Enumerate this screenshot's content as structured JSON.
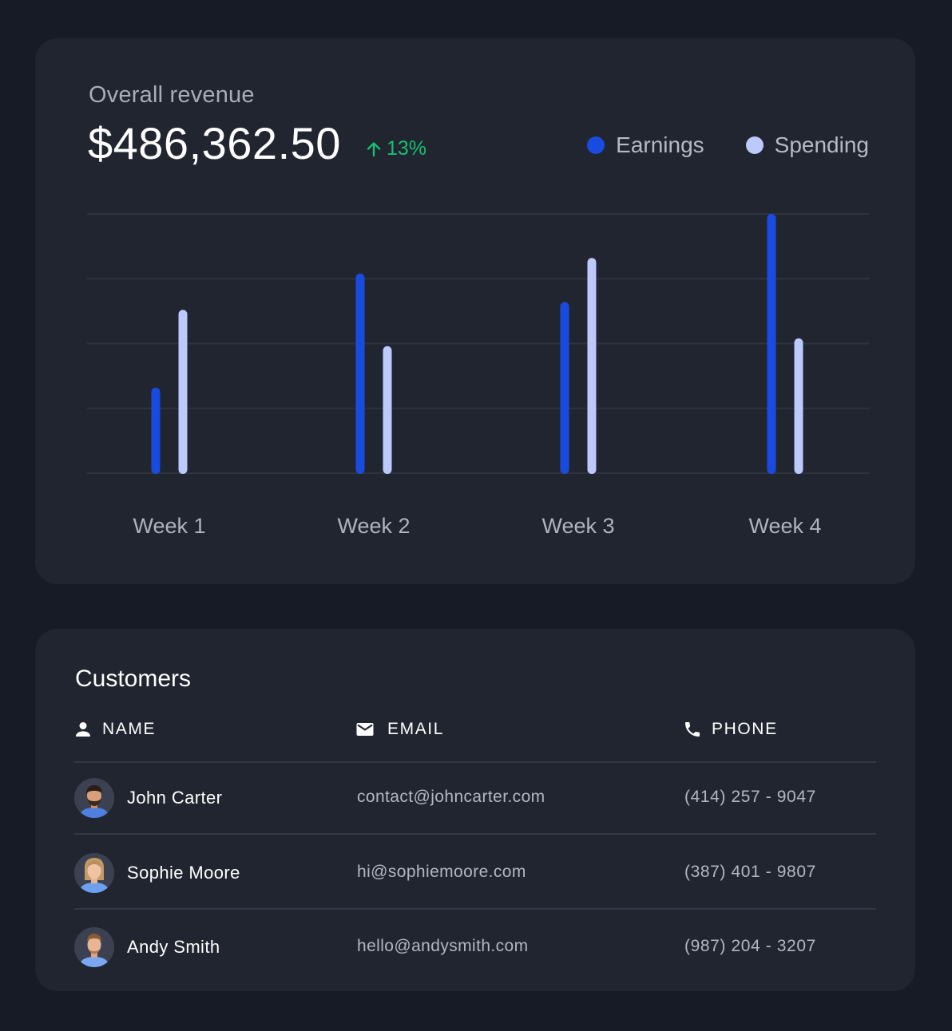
{
  "revenue": {
    "title": "Overall revenue",
    "total": "$486,362.50",
    "change": "13%",
    "change_direction": "up",
    "change_color": "#16c072",
    "legend": [
      {
        "label": "Earnings",
        "color": "#1a4be0"
      },
      {
        "label": "Spending",
        "color": "#bcc9fb"
      }
    ]
  },
  "chart_data": {
    "type": "bar",
    "categories": [
      "Week 1",
      "Week 2",
      "Week 3",
      "Week 4"
    ],
    "series": [
      {
        "name": "Earnings",
        "color": "#1a4be0",
        "values": [
          33,
          77,
          66,
          100
        ]
      },
      {
        "name": "Spending",
        "color": "#bcc9fb",
        "values": [
          63,
          49,
          83,
          52
        ]
      }
    ],
    "ylim": [
      0,
      100
    ],
    "grid": true,
    "legend_position": "top-right"
  },
  "customers": {
    "title": "Customers",
    "columns": {
      "name": "NAME",
      "email": "EMAIL",
      "phone": "PHONE"
    },
    "rows": [
      {
        "name": "John Carter",
        "email": "contact@johncarter.com",
        "phone": "(414) 257 - 9047",
        "avatar": "man-avatar"
      },
      {
        "name": "Sophie Moore",
        "email": "hi@sophiemoore.com",
        "phone": "(387) 401 - 9807",
        "avatar": "woman-avatar"
      },
      {
        "name": "Andy Smith",
        "email": "hello@andysmith.com",
        "phone": "(987) 204 - 3207",
        "avatar": "man-avatar"
      }
    ]
  }
}
